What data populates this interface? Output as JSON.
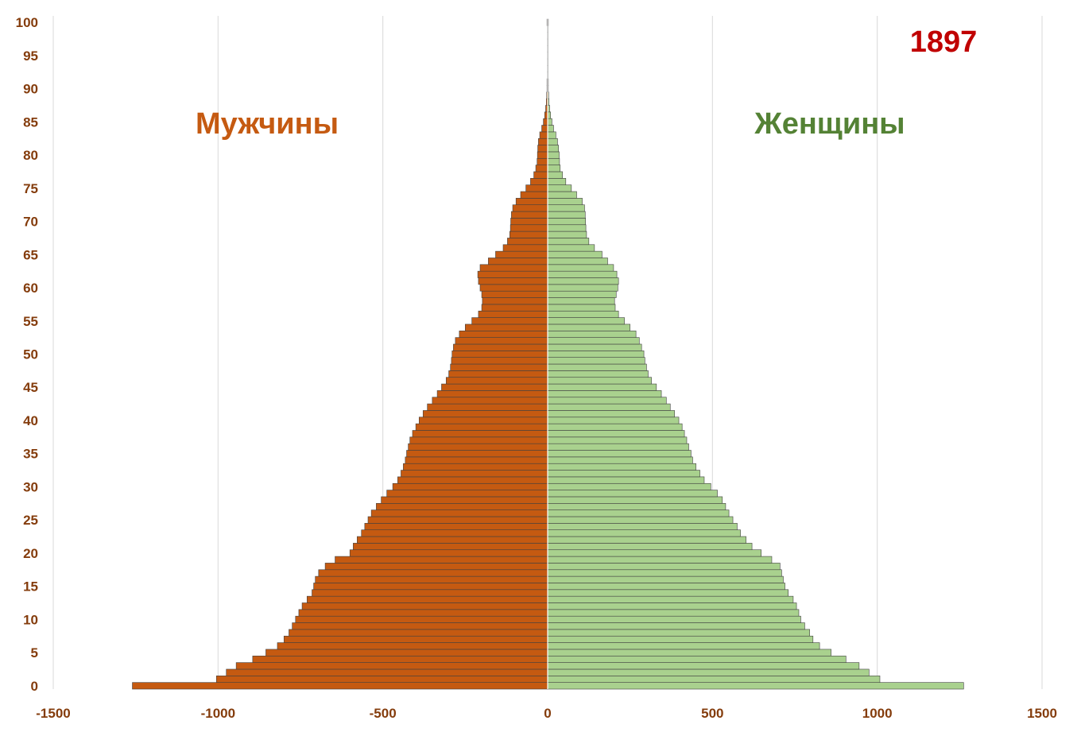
{
  "chart_data": {
    "type": "bar",
    "orientation": "horizontal",
    "title": "1897",
    "xlim": [
      -1500,
      1500
    ],
    "ylim": [
      0,
      100
    ],
    "x_ticks": [
      -1500,
      -1000,
      -500,
      0,
      500,
      1000,
      1500
    ],
    "y_ticks": [
      0,
      5,
      10,
      15,
      20,
      25,
      30,
      35,
      40,
      45,
      50,
      55,
      60,
      65,
      70,
      75,
      80,
      85,
      90,
      95,
      100
    ],
    "grid": "vertical",
    "ages": [
      0,
      1,
      2,
      3,
      4,
      5,
      6,
      7,
      8,
      9,
      10,
      11,
      12,
      13,
      14,
      15,
      16,
      17,
      18,
      19,
      20,
      21,
      22,
      23,
      24,
      25,
      26,
      27,
      28,
      29,
      30,
      31,
      32,
      33,
      34,
      35,
      36,
      37,
      38,
      39,
      40,
      41,
      42,
      43,
      44,
      45,
      46,
      47,
      48,
      49,
      50,
      51,
      52,
      53,
      54,
      55,
      56,
      57,
      58,
      59,
      60,
      61,
      62,
      63,
      64,
      65,
      66,
      67,
      68,
      69,
      70,
      71,
      72,
      73,
      74,
      75,
      76,
      77,
      78,
      79,
      80,
      81,
      82,
      83,
      84,
      85,
      86,
      87,
      88,
      89,
      90,
      91,
      92,
      93,
      94,
      95,
      96,
      97,
      98,
      99,
      100
    ],
    "series": [
      {
        "name": "Мужчины",
        "color": "#C55A11",
        "values": [
          -1260,
          -1005,
          -975,
          -945,
          -895,
          -855,
          -820,
          -800,
          -785,
          -775,
          -765,
          -755,
          -745,
          -730,
          -715,
          -710,
          -705,
          -695,
          -675,
          -645,
          -600,
          -590,
          -578,
          -565,
          -555,
          -545,
          -535,
          -520,
          -505,
          -488,
          -470,
          -455,
          -445,
          -438,
          -432,
          -428,
          -423,
          -418,
          -410,
          -400,
          -390,
          -378,
          -365,
          -350,
          -335,
          -322,
          -308,
          -300,
          -295,
          -292,
          -290,
          -286,
          -280,
          -268,
          -250,
          -230,
          -210,
          -200,
          -198,
          -200,
          -205,
          -210,
          -212,
          -205,
          -180,
          -158,
          -135,
          -122,
          -115,
          -113,
          -112,
          -110,
          -106,
          -96,
          -82,
          -66,
          -52,
          -42,
          -36,
          -32,
          -31,
          -30,
          -28,
          -24,
          -18,
          -13,
          -9,
          -6,
          -4,
          -3,
          -2,
          -2,
          -1,
          -1,
          -1,
          -1,
          -1,
          -1,
          -1,
          -1,
          -2
        ]
      },
      {
        "name": "Женщины",
        "color": "#A9D18E",
        "values": [
          1262,
          1008,
          975,
          945,
          905,
          860,
          825,
          805,
          795,
          780,
          768,
          762,
          755,
          745,
          730,
          720,
          715,
          710,
          705,
          680,
          648,
          620,
          602,
          585,
          575,
          562,
          550,
          540,
          530,
          515,
          495,
          475,
          462,
          450,
          440,
          435,
          428,
          422,
          415,
          408,
          398,
          385,
          372,
          360,
          345,
          330,
          315,
          305,
          300,
          295,
          292,
          285,
          278,
          268,
          250,
          233,
          215,
          205,
          203,
          208,
          213,
          215,
          210,
          200,
          182,
          165,
          142,
          125,
          118,
          116,
          115,
          114,
          112,
          105,
          88,
          72,
          55,
          45,
          38,
          36,
          35,
          33,
          30,
          25,
          18,
          13,
          9,
          6,
          4,
          3,
          2,
          2,
          1,
          1,
          1,
          1,
          1,
          1,
          1,
          1,
          2
        ]
      }
    ],
    "annotations": {
      "left": "Мужчины",
      "right": "Женщины"
    },
    "title_color": "#C00000",
    "axis_label_color": "#843C0C",
    "grid_color": "#D9D9D9",
    "annotation_left_color": "#C55A11",
    "annotation_right_color": "#548235"
  }
}
